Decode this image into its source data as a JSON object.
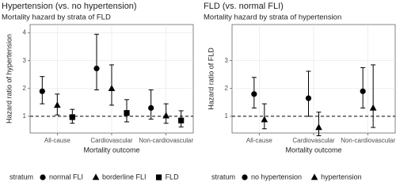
{
  "chart_data": [
    {
      "type": "pointrange",
      "title": "Hypertension (vs. no hypertension)",
      "subtitle": "Mortality hazard by strata of FLD",
      "xlabel": "Mortality outcome",
      "ylabel": "Hazard ratio of hypertension",
      "categories": [
        "All-cause",
        "Cardiovascular",
        "Non-cardiovascular"
      ],
      "legend_title": "stratum",
      "ylim": [
        0.4,
        4.3
      ],
      "yticks": [
        1,
        2,
        3,
        4
      ],
      "hline": 1,
      "grid": true,
      "series": [
        {
          "name": "normal FLI",
          "shape": "circle",
          "color": "#000000",
          "values": [
            1.9,
            2.72,
            1.3
          ],
          "lower": [
            1.45,
            1.95,
            0.9
          ],
          "upper": [
            2.43,
            3.95,
            1.95
          ]
        },
        {
          "name": "borderline FLI",
          "shape": "triangle",
          "color": "#000000",
          "values": [
            1.4,
            2.0,
            1.02
          ],
          "lower": [
            1.05,
            1.4,
            0.75
          ],
          "upper": [
            1.8,
            2.85,
            1.45
          ]
        },
        {
          "name": "FLD",
          "shape": "square",
          "color": "#000000",
          "values": [
            0.97,
            1.12,
            0.85
          ],
          "lower": [
            0.75,
            0.8,
            0.62
          ],
          "upper": [
            1.25,
            1.6,
            1.2
          ]
        }
      ]
    },
    {
      "type": "pointrange",
      "title": "FLD (vs. normal FLI)",
      "subtitle": "Mortality hazard by strata of hypertension",
      "xlabel": "Mortality outcome",
      "ylabel": "Hazard ratio of FLD",
      "categories": [
        "All-cause",
        "Cardiovascular",
        "Non-cardiovascular"
      ],
      "legend_title": "stratum",
      "ylim": [
        0.4,
        4.3
      ],
      "yticks": [
        1,
        2,
        3
      ],
      "hline": 1,
      "grid": true,
      "series": [
        {
          "name": "no hypertension",
          "shape": "circle",
          "color": "#000000",
          "values": [
            1.8,
            1.65,
            1.9
          ],
          "lower": [
            1.3,
            1.0,
            1.3
          ],
          "upper": [
            2.4,
            2.62,
            2.75
          ]
        },
        {
          "name": "hypertension",
          "shape": "triangle",
          "color": "#000000",
          "values": [
            0.88,
            0.6,
            1.3
          ],
          "lower": [
            0.55,
            0.3,
            0.6
          ],
          "upper": [
            1.45,
            1.15,
            2.85
          ]
        }
      ]
    }
  ]
}
